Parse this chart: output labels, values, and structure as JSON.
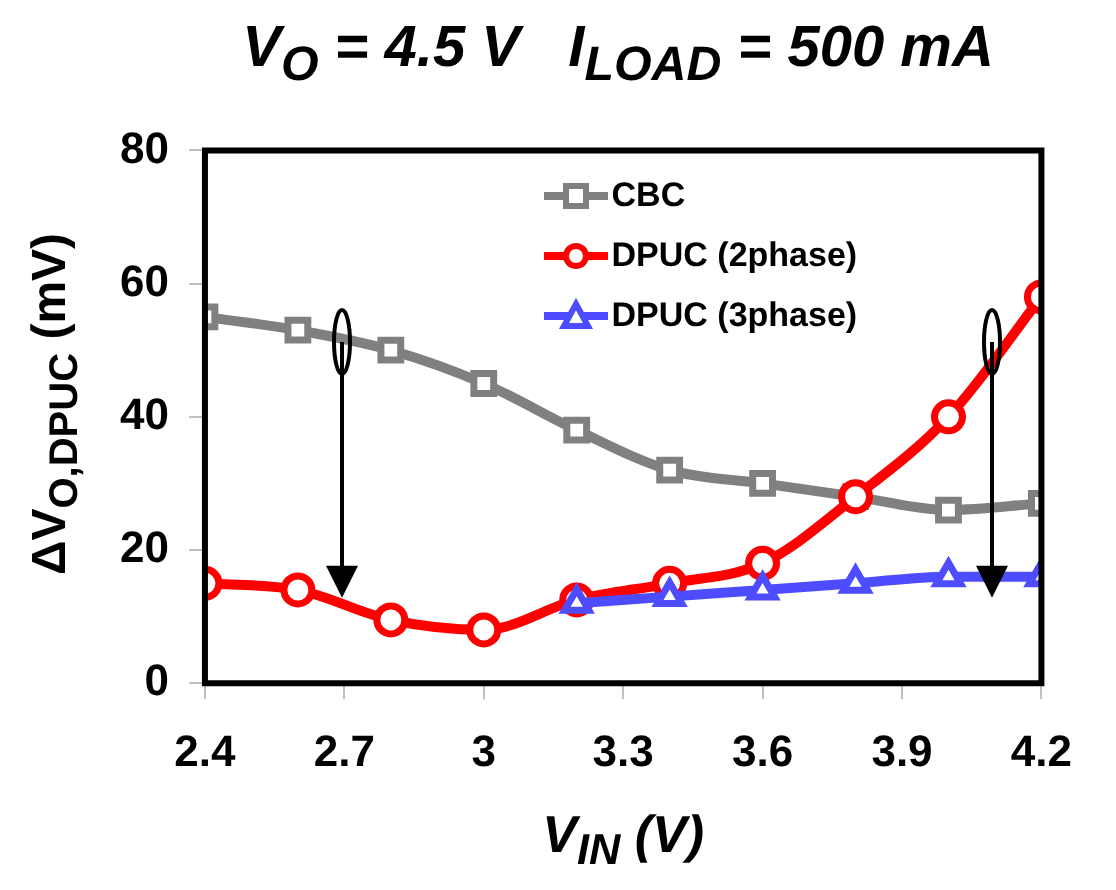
{
  "chart_data": {
    "type": "line",
    "title": "V$_{O}$ = 4.5 V   I$_{LOAD}$ = 500 mA",
    "xlabel": "V$_{IN}$ (V)",
    "ylabel": "ΔV$_{O,DPUC}$ (mV)",
    "xlim": [
      2.4,
      4.2
    ],
    "xticks": [
      2.4,
      2.7,
      3,
      3.3,
      3.6,
      3.9,
      4.2
    ],
    "ylim": [
      0,
      80
    ],
    "yticks": [
      0,
      20,
      40,
      60,
      80
    ],
    "grid": false,
    "legend": "top",
    "series": [
      {
        "name": "CBC",
        "color": "#808080",
        "marker": "square",
        "x": [
          2.4,
          2.6,
          2.8,
          3,
          3.2,
          3.4,
          3.6,
          3.8,
          4,
          4.2
        ],
        "values": [
          55,
          53,
          50,
          45,
          38,
          32,
          30,
          28,
          26,
          27
        ]
      },
      {
        "name": "DPUC (2phase)",
        "color": "#ff0000",
        "marker": "circle",
        "x": [
          2.4,
          2.6,
          2.8,
          3,
          3.2,
          3.4,
          3.6,
          3.8,
          4,
          4.2
        ],
        "values": [
          15,
          14,
          9.5,
          8,
          12.5,
          15,
          18,
          28,
          40,
          58
        ]
      },
      {
        "name": "DPUC (3phase)",
        "color": "#4d4dff",
        "marker": "triangle",
        "x": [
          3.2,
          3.4,
          3.6,
          3.8,
          4,
          4.2
        ],
        "values": [
          12,
          13,
          14,
          15,
          16,
          16
        ]
      }
    ]
  }
}
